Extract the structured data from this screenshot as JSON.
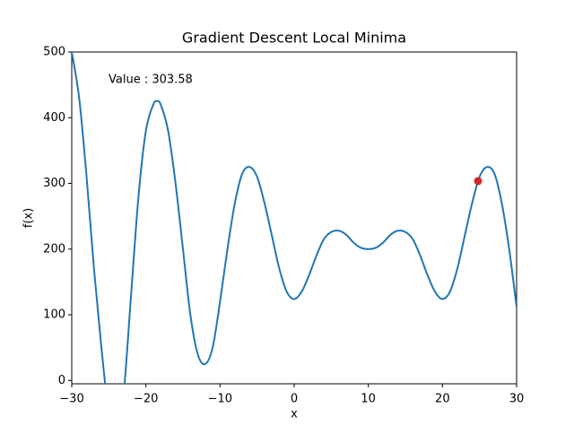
{
  "chart_data": {
    "type": "line",
    "title": "Gradient Descent Local Minima",
    "x_label": "x",
    "y_label": "f(x)",
    "annotation": "Value : 303.58",
    "x": [
      -30,
      -29,
      -28,
      -27,
      -26,
      -25,
      -24,
      -23,
      -22,
      -21,
      -20,
      -19,
      -18.5,
      -18,
      -17,
      -16,
      -15,
      -14,
      -13,
      -12,
      -11,
      -10,
      -9,
      -8,
      -7,
      -6,
      -5,
      -4,
      -3,
      -2,
      -1,
      0,
      1,
      2,
      3,
      4,
      5,
      6,
      7,
      8,
      9,
      10,
      11,
      12,
      13,
      14,
      15,
      16,
      17,
      18,
      19,
      20,
      21,
      22,
      23,
      24,
      25,
      26,
      27,
      28,
      29,
      30
    ],
    "series": [
      {
        "name": "f(x)",
        "color": "#1f77b4",
        "values": [
          500,
          430,
          310,
          170,
          50,
          -50,
          -90,
          -20,
          130,
          280,
          380,
          420,
          425,
          420,
          380,
          300,
          200,
          100,
          40,
          25,
          50,
          120,
          200,
          270,
          315,
          325,
          310,
          270,
          220,
          170,
          135,
          124,
          135,
          160,
          190,
          215,
          226,
          228,
          222,
          210,
          202,
          200,
          202,
          210,
          222,
          228,
          226,
          215,
          190,
          160,
          135,
          124,
          135,
          170,
          220,
          270,
          310,
          325,
          315,
          270,
          200,
          112
        ]
      }
    ],
    "point": {
      "x": 24.8,
      "y": 303.58,
      "color": "#d62728"
    },
    "xlim": [
      -30,
      30
    ],
    "ylim": [
      -5,
      500
    ],
    "xticks": [
      {
        "value": -30,
        "label": "−30"
      },
      {
        "value": -20,
        "label": "−20"
      },
      {
        "value": -10,
        "label": "−10"
      },
      0,
      10,
      20,
      30
    ],
    "yticks": [
      0,
      100,
      200,
      300,
      400,
      500
    ]
  }
}
